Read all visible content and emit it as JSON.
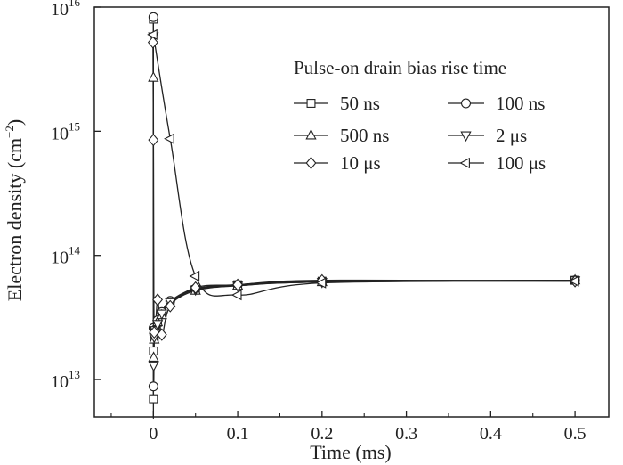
{
  "chart_data": {
    "type": "line",
    "title": "",
    "xlabel": "Time (ms)",
    "ylabel": "Electron density (cm⁻²)",
    "ylabel_main": "Electron density (cm",
    "ylabel_sup": "−2",
    "ylabel_close": ")",
    "xlim": [
      -0.07,
      0.54
    ],
    "ylim": [
      5000000000000.0,
      1e+16
    ],
    "yscale": "log",
    "x_ticks": [
      0,
      0.1,
      0.2,
      0.3,
      0.4,
      0.5
    ],
    "x_tick_labels": [
      "0",
      "0.1",
      "0.2",
      "0.3",
      "0.4",
      "0.5"
    ],
    "y_ticks": [
      10000000000000.0,
      100000000000000.0,
      1000000000000000.0,
      1e+16
    ],
    "y_tick_labels": [
      {
        "base": "10",
        "exp": "13"
      },
      {
        "base": "10",
        "exp": "14"
      },
      {
        "base": "10",
        "exp": "15"
      },
      {
        "base": "10",
        "exp": "16"
      }
    ],
    "grid": false,
    "legend_title": "Pulse-on drain bias rise time",
    "legend_position": "top-right",
    "series": [
      {
        "name": "50 ns",
        "marker": "square",
        "x": [
          0,
          5e-05,
          0.0001,
          0.001,
          0.002,
          0.005,
          0.01,
          0.02,
          0.05,
          0.1,
          0.2,
          0.5
        ],
        "y": [
          8000000000000000.0,
          7000000000000.0,
          17000000000000.0,
          22000000000000.0,
          24000000000000.0,
          29000000000000.0,
          34000000000000.0,
          42000000000000.0,
          53000000000000.0,
          58000000000000.0,
          62000000000000.0,
          63000000000000.0
        ]
      },
      {
        "name": "100 ns",
        "marker": "circle",
        "x": [
          0,
          5e-05,
          0.0001,
          0.001,
          0.002,
          0.005,
          0.01,
          0.02,
          0.05,
          0.1,
          0.2,
          0.5
        ],
        "y": [
          8300000000000000.0,
          8800000000000.0,
          26000000000000.0,
          23000000000000.0,
          25000000000000.0,
          30000000000000.0,
          35000000000000.0,
          43000000000000.0,
          54000000000000.0,
          58000000000000.0,
          62000000000000.0,
          63000000000000.0
        ]
      },
      {
        "name": "500 ns",
        "marker": "triangle-up",
        "x": [
          0,
          0.0003,
          0.001,
          0.002,
          0.005,
          0.01,
          0.02,
          0.05,
          0.1,
          0.2,
          0.5
        ],
        "y": [
          2700000000000000.0,
          15000000000000.0,
          21000000000000.0,
          24000000000000.0,
          29000000000000.0,
          33000000000000.0,
          41000000000000.0,
          52000000000000.0,
          57000000000000.0,
          61000000000000.0,
          63000000000000.0
        ]
      },
      {
        "name": "2 μs",
        "marker": "triangle-down",
        "x": [
          0,
          0.0003,
          0.001,
          0.002,
          0.005,
          0.01,
          0.02,
          0.05,
          0.1,
          0.2,
          0.5
        ],
        "y": [
          5800000000000000.0,
          13000000000000.0,
          22000000000000.0,
          25000000000000.0,
          28000000000000.0,
          34000000000000.0,
          42000000000000.0,
          53000000000000.0,
          57000000000000.0,
          61000000000000.0,
          63000000000000.0
        ]
      },
      {
        "name": "10 μs",
        "marker": "diamond",
        "x": [
          -0.0005,
          0,
          0.001,
          0.005,
          0.01,
          0.02,
          0.05,
          0.1,
          0.2,
          0.5
        ],
        "y": [
          5200000000000000.0,
          850000000000000.0,
          24000000000000.0,
          44000000000000.0,
          23000000000000.0,
          39000000000000.0,
          55000000000000.0,
          58000000000000.0,
          63000000000000.0,
          62000000000000.0
        ]
      },
      {
        "name": "100 μs",
        "marker": "triangle-left",
        "x": [
          0,
          0.02,
          0.05,
          0.1,
          0.2,
          0.5
        ],
        "y": [
          6000000000000000.0,
          870000000000000.0,
          68000000000000.0,
          48000000000000.0,
          60000000000000.0,
          62000000000000.0
        ]
      }
    ]
  }
}
